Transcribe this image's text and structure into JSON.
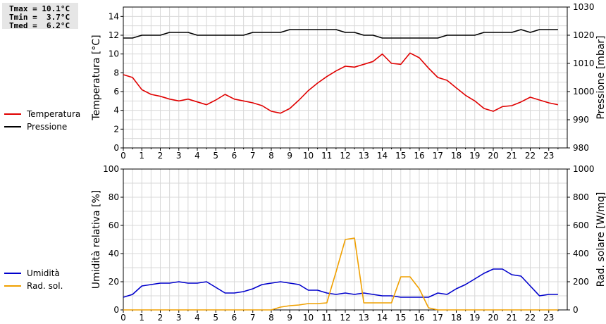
{
  "stats": [
    {
      "label": "Tmax",
      "value": "10.1°C"
    },
    {
      "label": "Tmin",
      "value": "3.7°C"
    },
    {
      "label": "Tmed",
      "value": "6.2°C"
    }
  ],
  "chart_data": [
    {
      "type": "line",
      "xlim": [
        0,
        24
      ],
      "xticks": [
        "0",
        "1",
        "2",
        "3",
        "4",
        "5",
        "6",
        "7",
        "8",
        "9",
        "10",
        "11",
        "12",
        "13",
        "14",
        "15",
        "16",
        "17",
        "18",
        "19",
        "20",
        "21",
        "22",
        "23"
      ],
      "left_axis": {
        "label": "Temperatura [°C]",
        "lim": [
          0,
          15
        ],
        "ticks": [
          "0",
          "2",
          "4",
          "6",
          "8",
          "10",
          "12",
          "14"
        ]
      },
      "right_axis": {
        "label": "Pressione [mbar]",
        "lim": [
          980,
          1030
        ],
        "ticks": [
          "980",
          "990",
          "1000",
          "1010",
          "1020",
          "1030"
        ]
      },
      "grid": true,
      "legend_position": "left",
      "series": [
        {
          "name": "Temperatura",
          "axis": "left",
          "color": "#e00000",
          "x": [
            0,
            0.5,
            1,
            1.5,
            2,
            2.5,
            3,
            3.5,
            4,
            4.5,
            5,
            5.5,
            6,
            6.5,
            7,
            7.5,
            8,
            8.5,
            9,
            9.5,
            10,
            10.5,
            11,
            11.5,
            12,
            12.5,
            13,
            13.5,
            14,
            14.5,
            15,
            15.5,
            16,
            16.5,
            17,
            17.5,
            18,
            18.5,
            19,
            19.5,
            20,
            20.5,
            21,
            21.5,
            22,
            22.5,
            23,
            23.5
          ],
          "y": [
            7.8,
            7.5,
            6.2,
            5.7,
            5.5,
            5.2,
            5.0,
            5.2,
            4.9,
            4.6,
            5.1,
            5.7,
            5.2,
            5.0,
            4.8,
            4.5,
            3.9,
            3.7,
            4.2,
            5.1,
            6.1,
            6.9,
            7.6,
            8.2,
            8.7,
            8.6,
            8.9,
            9.2,
            10.0,
            9.0,
            8.9,
            10.1,
            9.6,
            8.5,
            7.5,
            7.2,
            6.4,
            5.6,
            5.0,
            4.2,
            3.9,
            4.4,
            4.5,
            4.9,
            5.4,
            5.1,
            4.8,
            4.6
          ]
        },
        {
          "name": "Pressione",
          "axis": "right",
          "color": "#000000",
          "x": [
            0,
            0.5,
            1,
            1.5,
            2,
            2.5,
            3,
            3.5,
            4,
            4.5,
            5,
            5.5,
            6,
            6.5,
            7,
            7.5,
            8,
            8.5,
            9,
            9.5,
            10,
            10.5,
            11,
            11.5,
            12,
            12.5,
            13,
            13.5,
            14,
            14.5,
            15,
            15.5,
            16,
            16.5,
            17,
            17.5,
            18,
            18.5,
            19,
            19.5,
            20,
            20.5,
            21,
            21.5,
            22,
            22.5,
            23,
            23.5
          ],
          "y": [
            1019,
            1019,
            1020,
            1020,
            1020,
            1021,
            1021,
            1021,
            1020,
            1020,
            1020,
            1020,
            1020,
            1020,
            1021,
            1021,
            1021,
            1021,
            1022,
            1022,
            1022,
            1022,
            1022,
            1022,
            1021,
            1021,
            1020,
            1020,
            1019,
            1019,
            1019,
            1019,
            1019,
            1019,
            1019,
            1020,
            1020,
            1020,
            1020,
            1021,
            1021,
            1021,
            1021,
            1022,
            1021,
            1022,
            1022,
            1022
          ]
        }
      ]
    },
    {
      "type": "line",
      "xlim": [
        0,
        24
      ],
      "xticks": [
        "0",
        "1",
        "2",
        "3",
        "4",
        "5",
        "6",
        "7",
        "8",
        "9",
        "10",
        "11",
        "12",
        "13",
        "14",
        "15",
        "16",
        "17",
        "18",
        "19",
        "20",
        "21",
        "22",
        "23"
      ],
      "left_axis": {
        "label": "Umidità relativa [%]",
        "lim": [
          0,
          100
        ],
        "ticks": [
          "0",
          "20",
          "40",
          "60",
          "80",
          "100"
        ]
      },
      "right_axis": {
        "label": "Rad. solare [W/mq]",
        "lim": [
          0,
          1000
        ],
        "ticks": [
          "0",
          "200",
          "400",
          "600",
          "800",
          "1000"
        ]
      },
      "grid": true,
      "legend_position": "left",
      "series": [
        {
          "name": "Umidità",
          "axis": "left",
          "color": "#0000cc",
          "x": [
            0,
            0.5,
            1,
            1.5,
            2,
            2.5,
            3,
            3.5,
            4,
            4.5,
            5,
            5.5,
            6,
            6.5,
            7,
            7.5,
            8,
            8.5,
            9,
            9.5,
            10,
            10.5,
            11,
            11.5,
            12,
            12.5,
            13,
            13.5,
            14,
            14.5,
            15,
            15.5,
            16,
            16.5,
            17,
            17.5,
            18,
            18.5,
            19,
            19.5,
            20,
            20.5,
            21,
            21.5,
            22,
            22.5,
            23,
            23.5
          ],
          "y": [
            9,
            11,
            17,
            18,
            19,
            19,
            20,
            19,
            19,
            20,
            16,
            12,
            12,
            13,
            15,
            18,
            19,
            20,
            19,
            18,
            14,
            14,
            12,
            11,
            12,
            11,
            12,
            11,
            10,
            10,
            9,
            9,
            9,
            9,
            12,
            11,
            15,
            18,
            22,
            26,
            29,
            29,
            25,
            24,
            17,
            10,
            11,
            11
          ]
        },
        {
          "name": "Rad. sol.",
          "axis": "right",
          "color": "#f0a000",
          "x": [
            0,
            0.5,
            1,
            1.5,
            2,
            2.5,
            3,
            3.5,
            4,
            4.5,
            5,
            5.5,
            6,
            6.5,
            7,
            7.5,
            8,
            8.5,
            9,
            9.5,
            10,
            10.5,
            11,
            11.5,
            12,
            12.5,
            13,
            13.5,
            14,
            14.5,
            15,
            15.5,
            16,
            16.5,
            17,
            17.5,
            18,
            18.5,
            19,
            19.5,
            20,
            20.5,
            21,
            21.5,
            22,
            22.5,
            23,
            23.5
          ],
          "y": [
            0,
            0,
            0,
            0,
            0,
            0,
            0,
            0,
            0,
            0,
            0,
            0,
            0,
            0,
            0,
            0,
            0,
            20,
            30,
            35,
            45,
            45,
            50,
            270,
            500,
            510,
            50,
            50,
            50,
            50,
            235,
            235,
            150,
            15,
            0,
            0,
            0,
            0,
            0,
            0,
            0,
            0,
            0,
            0,
            0,
            0,
            0,
            0
          ]
        }
      ]
    }
  ]
}
